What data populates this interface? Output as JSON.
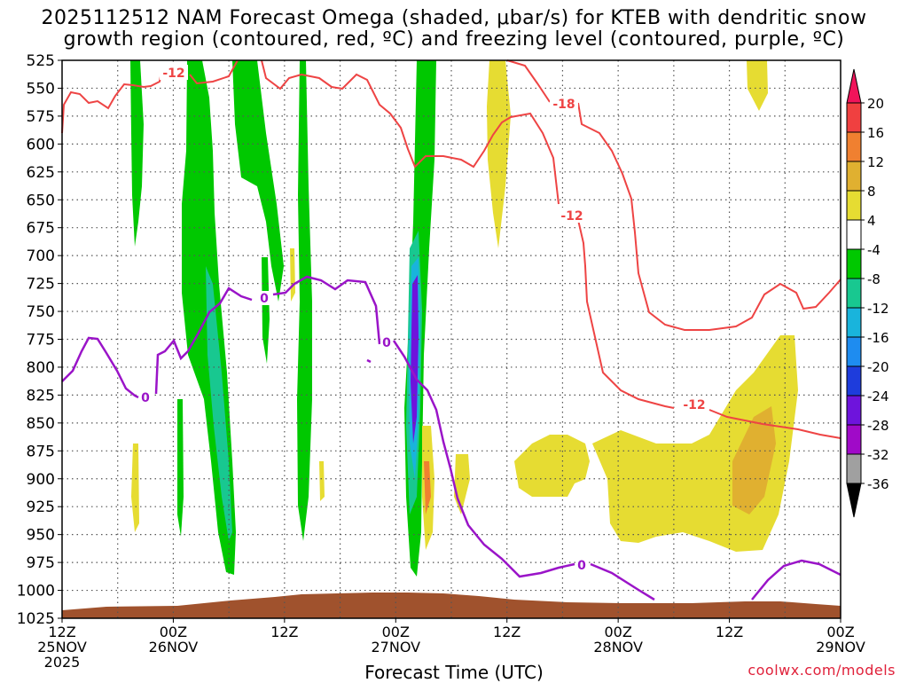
{
  "header": {
    "title_line1": "2025112512 NAM Forecast Omega (shaded, μbar/s) for KTEB with dendritic snow",
    "title_line2": "growth region (contoured, red, ºC) and freezing level (contoured, purple, ºC)"
  },
  "credit": "coolwx.com/models",
  "chart_data": {
    "type": "time-height cross section",
    "xlabel": "Forecast Time (UTC)",
    "ylabel": "",
    "x_ticks": [
      {
        "hours": 0,
        "line1": "12Z",
        "line2": "25NOV",
        "line3": "2025"
      },
      {
        "hours": 12,
        "line1": "00Z",
        "line2": "26NOV",
        "line3": ""
      },
      {
        "hours": 24,
        "line1": "12Z",
        "line2": "",
        "line3": ""
      },
      {
        "hours": 36,
        "line1": "00Z",
        "line2": "27NOV",
        "line3": ""
      },
      {
        "hours": 48,
        "line1": "12Z",
        "line2": "",
        "line3": ""
      },
      {
        "hours": 60,
        "line1": "00Z",
        "line2": "28NOV",
        "line3": ""
      },
      {
        "hours": 72,
        "line1": "12Z",
        "line2": "",
        "line3": ""
      },
      {
        "hours": 84,
        "line1": "00Z",
        "line2": "29NOV",
        "line3": ""
      }
    ],
    "xlim_hours": [
      0,
      84
    ],
    "y_levels_hpa": [
      525,
      550,
      575,
      600,
      625,
      650,
      675,
      700,
      725,
      750,
      775,
      800,
      825,
      850,
      875,
      900,
      925,
      950,
      975,
      1000,
      1025
    ],
    "ylim_hpa": [
      525,
      1025
    ],
    "grid": true,
    "colorbar": {
      "labels": [
        "20",
        "16",
        "12",
        "8",
        "4",
        "-4",
        "-8",
        "-12",
        "-16",
        "-20",
        "-24",
        "-28",
        "-32",
        "-36"
      ],
      "colors": [
        "#f0145a",
        "#f04040",
        "#f08030",
        "#e0b030",
        "#e6dc32",
        "#ffffff",
        "#00c800",
        "#18c890",
        "#19b4dc",
        "#1e8cf0",
        "#1e3cdc",
        "#6e14dc",
        "#a00ac8",
        "#a0a0a0",
        "#000000"
      ],
      "units": "μbar/s"
    },
    "red_contour_labels": [
      "-12",
      "-18",
      "-12",
      "-12"
    ],
    "purple_contour_labels": [
      "0",
      "0",
      "0",
      "0"
    ],
    "terrain_color": "#a0522d"
  }
}
